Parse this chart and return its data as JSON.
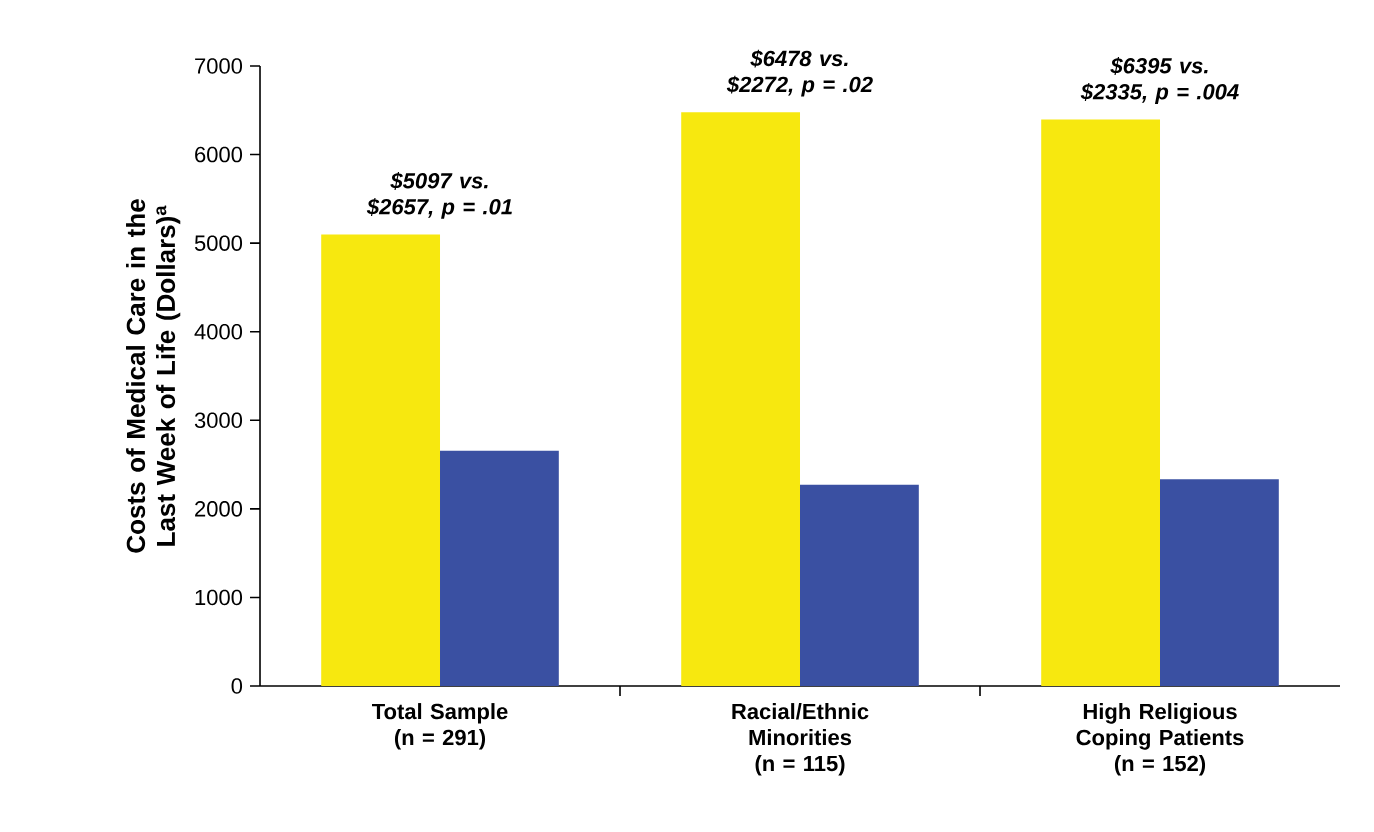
{
  "chart_data": {
    "type": "bar",
    "ylabel": "Costs of Medical Care in the Last Week of Life (Dollars)$^{a}$",
    "categories": [
      "Total Sample (n = 291)",
      "Racial/Ethnic Minorities (n = 115)",
      "High Religious Coping Patients (n = 152)"
    ],
    "series": [
      {
        "color": "#f7e80f",
        "values": [
          5097,
          6478,
          6395
        ]
      },
      {
        "color": "#3a50a2",
        "values": [
          2657,
          2272,
          2335
        ]
      }
    ],
    "ylim": [
      0,
      7000
    ],
    "yticks": [
      0,
      1000,
      2000,
      3000,
      4000,
      5000,
      6000,
      7000
    ],
    "annotations": [
      "$5097 vs. $2657, p = .01",
      "$6478 vs. $2272, p = .02",
      "$6395 vs. $2335, p = .004"
    ],
    "grid": false
  }
}
